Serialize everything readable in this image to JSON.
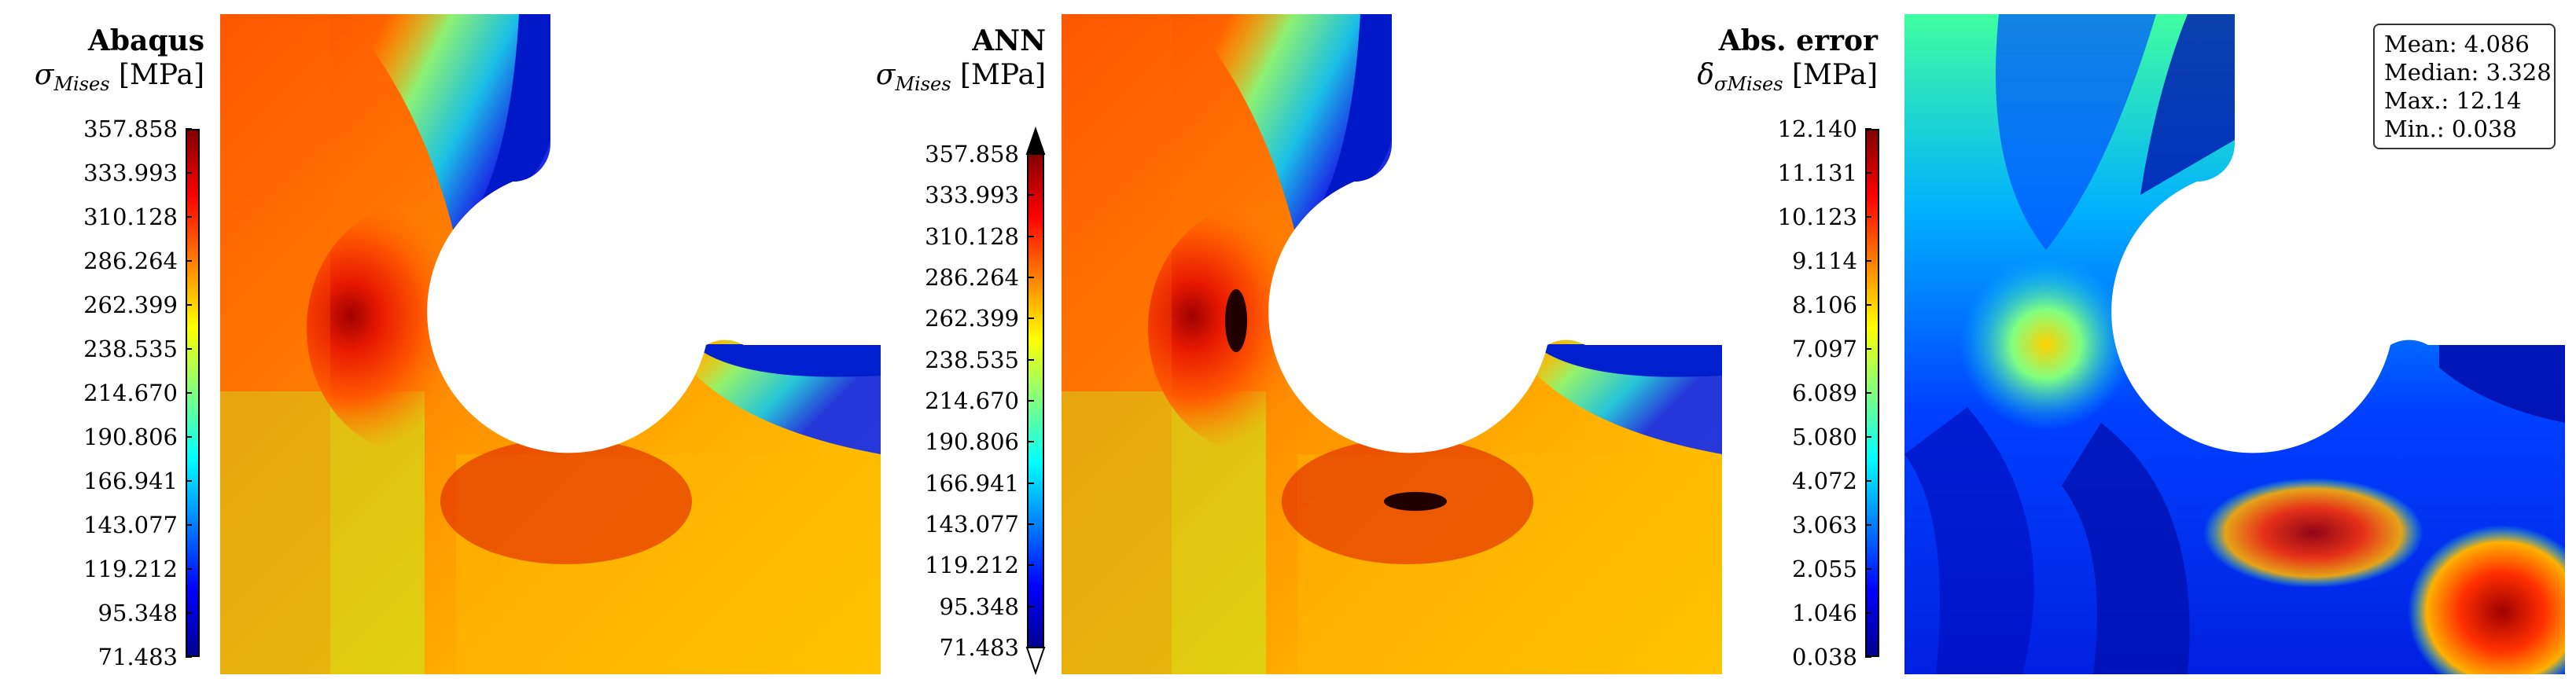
{
  "chart_data": [
    {
      "type": "heatmap",
      "title": "Abaqus",
      "colorbar_label": "σMises [MPa]",
      "colorbar_ticks": [
        "357.858",
        "333.993",
        "310.128",
        "286.264",
        "262.399",
        "238.535",
        "214.670",
        "190.806",
        "166.941",
        "143.077",
        "119.212",
        "95.348",
        "71.483"
      ],
      "colorbar_range": [
        71.483,
        357.858
      ],
      "colormap": "jet"
    },
    {
      "type": "heatmap",
      "title": "ANN",
      "colorbar_label": "σMises [MPa]",
      "colorbar_ticks": [
        "357.858",
        "333.993",
        "310.128",
        "286.264",
        "262.399",
        "238.535",
        "214.670",
        "190.806",
        "166.941",
        "143.077",
        "119.212",
        "95.348",
        "71.483"
      ],
      "colorbar_range": [
        71.483,
        357.858
      ],
      "colormap": "jet",
      "colorbar_extend": "both"
    },
    {
      "type": "heatmap",
      "title": "Abs. error",
      "colorbar_label": "δσMises [MPa]",
      "colorbar_ticks": [
        "12.140",
        "11.131",
        "10.123",
        "9.114",
        "8.106",
        "7.097",
        "6.089",
        "5.080",
        "4.072",
        "3.063",
        "2.055",
        "1.046",
        "0.038"
      ],
      "colorbar_range": [
        0.038,
        12.14
      ],
      "colormap": "jet",
      "stats": [
        "Mean: 4.086",
        "Median: 3.328",
        "Max.: 12.14",
        "Min.: 0.038"
      ]
    }
  ]
}
